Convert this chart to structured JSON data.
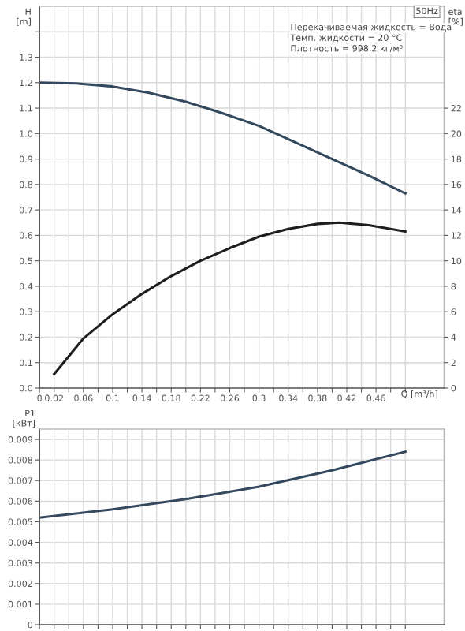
{
  "chart_data": [
    {
      "type": "line",
      "ylabel": "H\n[m]",
      "y2label": "eta\n[%]",
      "xlabel": "Q [m³/h]",
      "annotations": [
        "50Hz",
        "Перекачиваемая жидкость = Вода",
        "Темп. жидкости = 20 °C",
        "Плотность = 998.2 кг/м³"
      ],
      "series": [
        {
          "color": "#34495e",
          "x": [
            0,
            0.05,
            0.1,
            0.15,
            0.2,
            0.25,
            0.3,
            0.35,
            0.4,
            0.45,
            0.5
          ],
          "values": [
            1.2,
            1.197,
            1.185,
            1.16,
            1.125,
            1.08,
            1.03,
            0.965,
            0.9,
            0.835,
            0.765
          ]
        },
        {
          "color": "#1e1e1e",
          "axis": "y2",
          "x": [
            0.02,
            0.06,
            0.1,
            0.14,
            0.18,
            0.22,
            0.26,
            0.3,
            0.34,
            0.38,
            0.41,
            0.45,
            0.5
          ],
          "values": [
            1.1,
            3.9,
            5.8,
            7.4,
            8.8,
            10.0,
            11.0,
            11.9,
            12.5,
            12.9,
            13.0,
            12.8,
            12.3
          ]
        }
      ],
      "xlim": [
        0,
        0.553
      ],
      "xticks": [
        0,
        0.02,
        {
          "value": 0.04,
          "label": null
        },
        0.06,
        {
          "value": 0.08,
          "label": null
        },
        0.1,
        {
          "value": 0.12,
          "label": null
        },
        0.14,
        {
          "value": 0.16,
          "label": null
        },
        0.18,
        {
          "value": 0.2,
          "label": null
        },
        0.22,
        {
          "value": 0.24,
          "label": null
        },
        0.26,
        {
          "value": 0.28,
          "label": null
        },
        0.3,
        {
          "value": 0.32,
          "label": null
        },
        0.34,
        {
          "value": 0.36,
          "label": null
        },
        0.38,
        {
          "value": 0.4,
          "label": null
        },
        0.42,
        {
          "value": 0.44,
          "label": null
        },
        0.46,
        {
          "value": 0.48,
          "label": null
        },
        {
          "value": 0.5,
          "label": null
        }
      ],
      "ylim": [
        0,
        1.5
      ],
      "yticks": [
        {
          "value": 0,
          "label": "0.0"
        },
        0.1,
        0.2,
        0.3,
        0.4,
        0.5,
        0.6,
        0.7,
        0.8,
        0.9,
        {
          "value": 1,
          "label": "1.0"
        },
        1.1,
        1.2,
        1.3,
        {
          "value": 1.4,
          "label": null
        }
      ],
      "y2lim": [
        0,
        30
      ],
      "y2ticks": [
        0,
        2,
        4,
        6,
        8,
        10,
        12,
        14,
        16,
        18,
        20,
        22
      ],
      "grid": true
    },
    {
      "type": "line",
      "ylabel": "P1\n[кВт]",
      "series": [
        {
          "color": "#34495e",
          "x": [
            0,
            0.1,
            0.2,
            0.25,
            0.3,
            0.4,
            0.5
          ],
          "values": [
            0.0052,
            0.0056,
            0.0061,
            0.0064,
            0.0067,
            0.0075,
            0.0084
          ]
        }
      ],
      "xlim": [
        0,
        0.553
      ],
      "xticks": [
        0,
        0.02,
        0.04,
        0.06,
        0.08,
        0.1,
        0.12,
        0.14,
        0.16,
        0.18,
        0.2,
        0.22,
        0.24,
        0.26,
        0.28,
        0.3,
        0.32,
        0.34,
        0.36,
        0.38,
        0.4,
        0.42,
        0.44,
        0.46,
        0.48,
        0.5
      ],
      "ylim": [
        0,
        0.0095
      ],
      "yticks": [
        0,
        0.001,
        0.002,
        0.003,
        0.004,
        0.005,
        0.006,
        0.007,
        0.008,
        0.009
      ],
      "tick_labels": "y",
      "grid": true
    }
  ]
}
